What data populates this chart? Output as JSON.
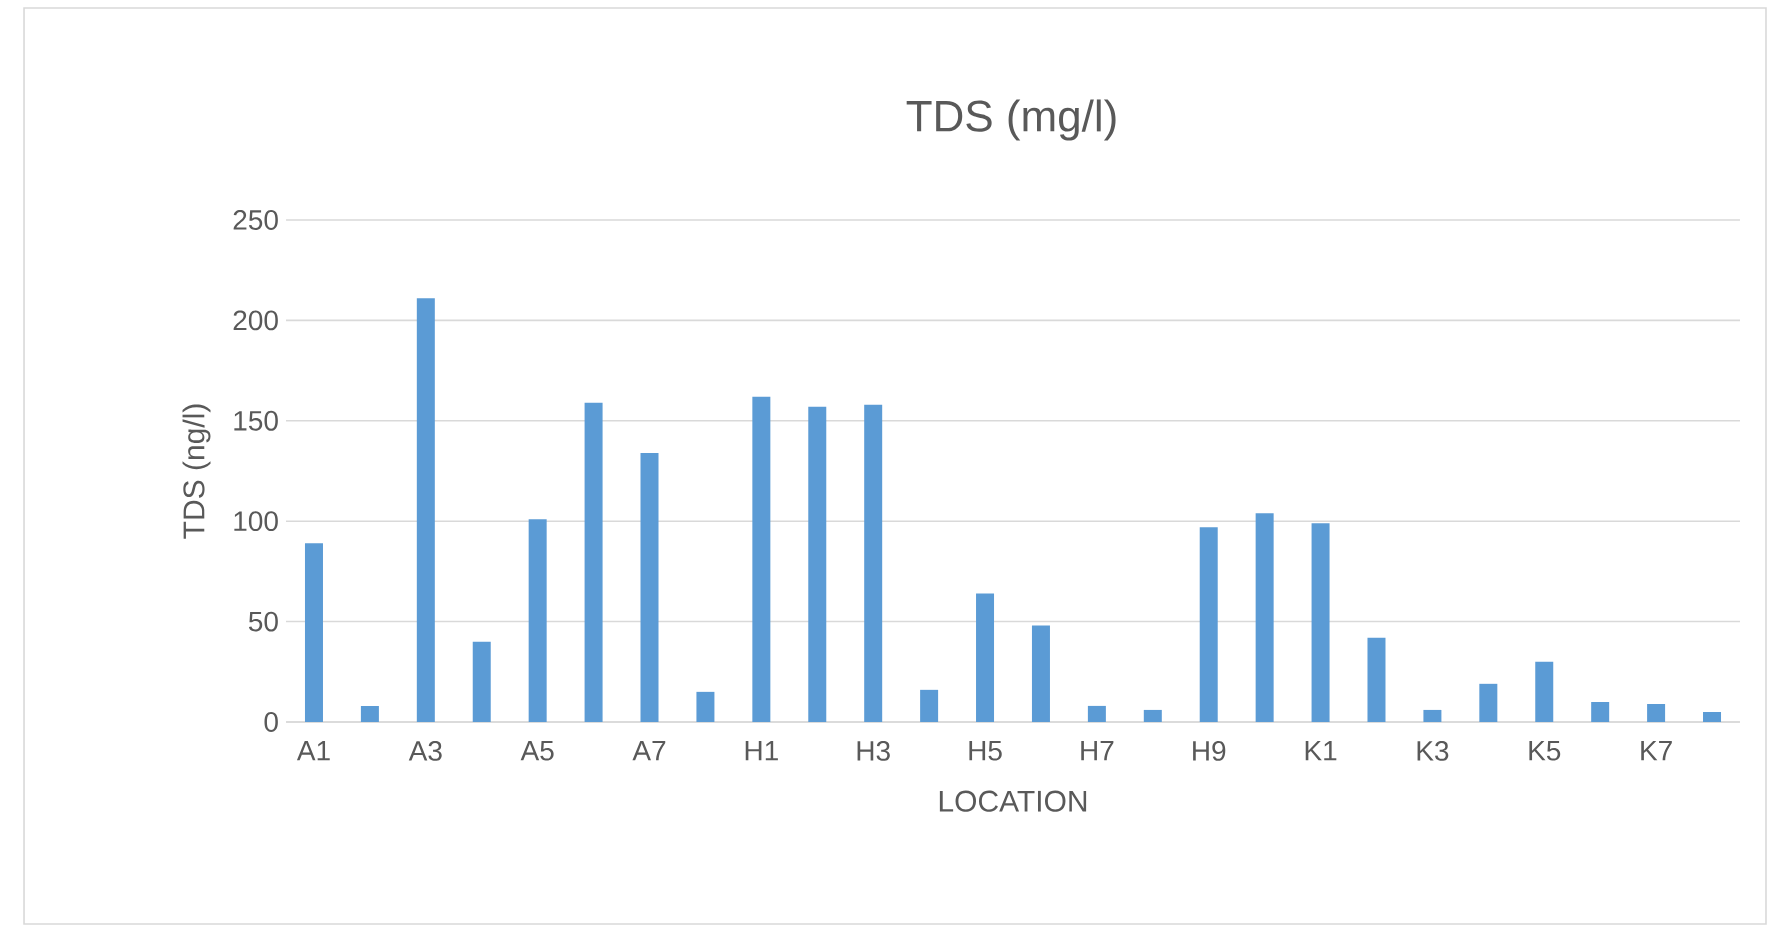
{
  "chart_data": {
    "type": "bar",
    "title": "TDS (mg/l)",
    "xlabel": "LOCATION",
    "ylabel": "TDS (ng/l)",
    "categories": [
      "A1",
      null,
      "A3",
      null,
      "A5",
      null,
      "A7",
      null,
      "H1",
      null,
      "H3",
      null,
      "H5",
      null,
      "H7",
      null,
      "H9",
      null,
      "K1",
      null,
      "K3",
      null,
      "K5",
      null,
      "K7",
      null
    ],
    "values": [
      89,
      8,
      211,
      40,
      101,
      159,
      134,
      15,
      162,
      157,
      158,
      16,
      64,
      48,
      8,
      6,
      97,
      104,
      99,
      42,
      6,
      19,
      30,
      10,
      9,
      5
    ],
    "color": "#5b9bd5",
    "ylim": [
      0,
      250
    ],
    "yticks": [
      0,
      50,
      100,
      150,
      200,
      250
    ],
    "grid": "y"
  }
}
